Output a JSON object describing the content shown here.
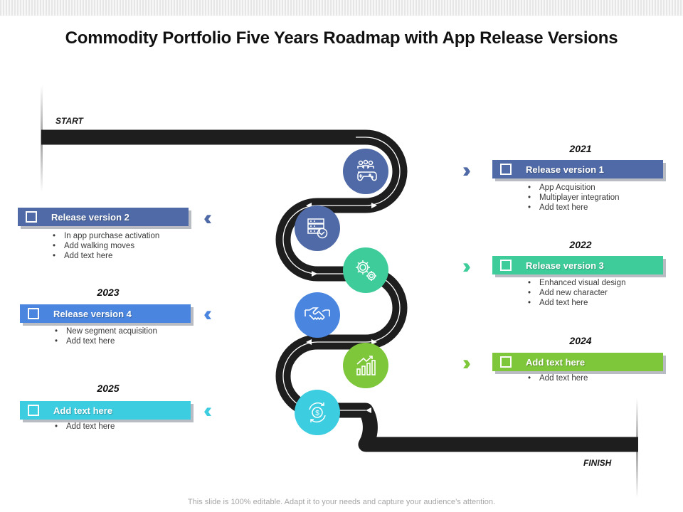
{
  "title": "Commodity Portfolio Five Years Roadmap with App Release Versions",
  "start_label": "START",
  "finish_label": "FINISH",
  "footer": "This slide is 100% editable. Adapt it to your needs and capture your audience’s attention.",
  "colors": {
    "road": "#1e1e1e",
    "v1": "#4f6aa6",
    "v2": "#4f6aa6",
    "v3": "#3ecc9a",
    "v4": "#4a86df",
    "v5": "#7ec63a",
    "v6": "#3dcde0"
  },
  "milestones": [
    {
      "year": "2021",
      "title": "Release version 1",
      "bullets": [
        "App Acquisition",
        "Multiplayer integration",
        "Add text here"
      ],
      "icon": "gamepad-team-icon"
    },
    {
      "year": "",
      "title": "Release version 2",
      "bullets": [
        "In app purchase activation",
        "Add walking moves",
        "Add text here"
      ],
      "icon": "server-check-icon"
    },
    {
      "year": "2022",
      "title": "Release version 3",
      "bullets": [
        "Enhanced visual design",
        "Add new character",
        "Add text here"
      ],
      "icon": "gears-icon"
    },
    {
      "year": "2023",
      "title": "Release version 4",
      "bullets": [
        "New segment acquisition",
        "Add text here"
      ],
      "icon": "handshake-icon"
    },
    {
      "year": "2024",
      "title": "Add text here",
      "bullets": [
        "Add text here"
      ],
      "icon": "growth-chart-icon"
    },
    {
      "year": "2025",
      "title": "Add text here",
      "bullets": [
        "Add text here"
      ],
      "icon": "dollar-cycle-icon"
    }
  ]
}
